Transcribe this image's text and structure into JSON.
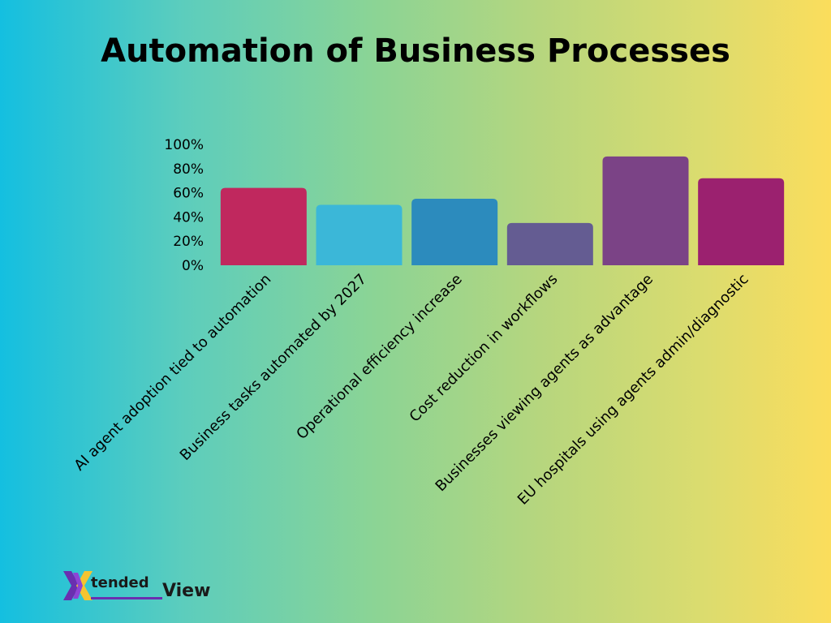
{
  "chart_data": {
    "type": "bar",
    "title": "Automation of Business Processes",
    "xlabel": "",
    "ylabel": "",
    "categories": [
      "AI agent adoption tied to automation",
      "Business tasks automated by 2027",
      "Operational efficiency increase",
      "Cost reduction in workflows",
      "Businesses viewing agents as advantage",
      "EU hospitals using agents admin/diagnostic"
    ],
    "values": [
      64,
      50,
      55,
      35,
      90,
      72
    ],
    "colors": [
      "#c0285e",
      "#3bb7d8",
      "#2c8bbd",
      "#645c92",
      "#7b4386",
      "#9b216f"
    ],
    "ylim": [
      0,
      100
    ],
    "yticks": [
      "0%",
      "20%",
      "40%",
      "60%",
      "80%",
      "100%"
    ],
    "grid": false,
    "legend": "none"
  },
  "logo": {
    "mark": "X",
    "word1": "tended",
    "word2": "View"
  }
}
